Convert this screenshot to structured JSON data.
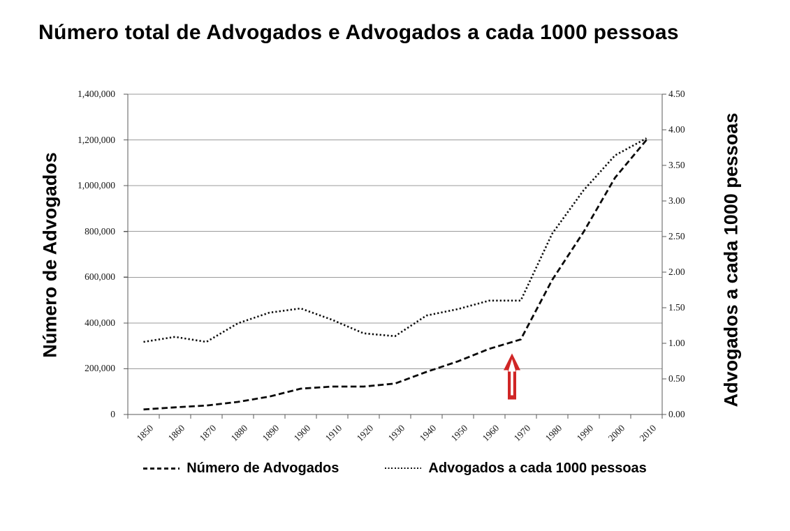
{
  "title": "Número total de Advogados e Advogados a cada 1000 pessoas",
  "chart_data": {
    "type": "line",
    "title": "Número total de Advogados e Advogados a cada 1000 pessoas",
    "categories": [
      "1850",
      "1860",
      "1870",
      "1880",
      "1890",
      "1900",
      "1910",
      "1920",
      "1930",
      "1940",
      "1950",
      "1960",
      "1970",
      "1980",
      "1990",
      "2000",
      "2010"
    ],
    "series": [
      {
        "name": "Número de Advogados",
        "axis": "left",
        "style": "dashed",
        "color": "#0a0a0a",
        "values": [
          22000,
          31000,
          39000,
          55000,
          78000,
          113000,
          122000,
          122000,
          135000,
          186000,
          232000,
          287000,
          328000,
          588000,
          798000,
          1035000,
          1200000
        ]
      },
      {
        "name": "Advogados a cada 1000 pessoas",
        "axis": "right",
        "style": "dotted",
        "color": "#0a0a0a",
        "values": [
          1.02,
          1.09,
          1.02,
          1.28,
          1.43,
          1.49,
          1.33,
          1.14,
          1.1,
          1.39,
          1.48,
          1.6,
          1.6,
          2.54,
          3.15,
          3.64,
          3.88
        ]
      }
    ],
    "left_axis": {
      "label": "Número de Advogados",
      "min": 0,
      "max": 1400000,
      "tick_step": 200000,
      "tick_labels": [
        "0",
        "200,000",
        "400,000",
        "600,000",
        "800,000",
        "1,000,000",
        "1,200,000",
        "1,400,000"
      ]
    },
    "right_axis": {
      "label": "Advogados a cada 1000 pessoas",
      "min": 0,
      "max": 4.5,
      "tick_step": 0.5,
      "tick_labels": [
        "0.00",
        "0.50",
        "1.00",
        "1.50",
        "2.00",
        "2.50",
        "3.00",
        "3.50",
        "4.00",
        "4.50"
      ]
    },
    "legend": [
      "Número de Advogados",
      "Advogados a cada 1000 pessoas"
    ],
    "legend_position": "bottom",
    "grid": "horizontal",
    "annotation": {
      "shape": "up-arrow",
      "at_category": "1970",
      "color": "#d02626"
    },
    "colors": {
      "lines": "#0a0a0a",
      "grid": "#9a9a9a",
      "axis": "#5a5a5a",
      "arrow": "#d02626"
    }
  }
}
